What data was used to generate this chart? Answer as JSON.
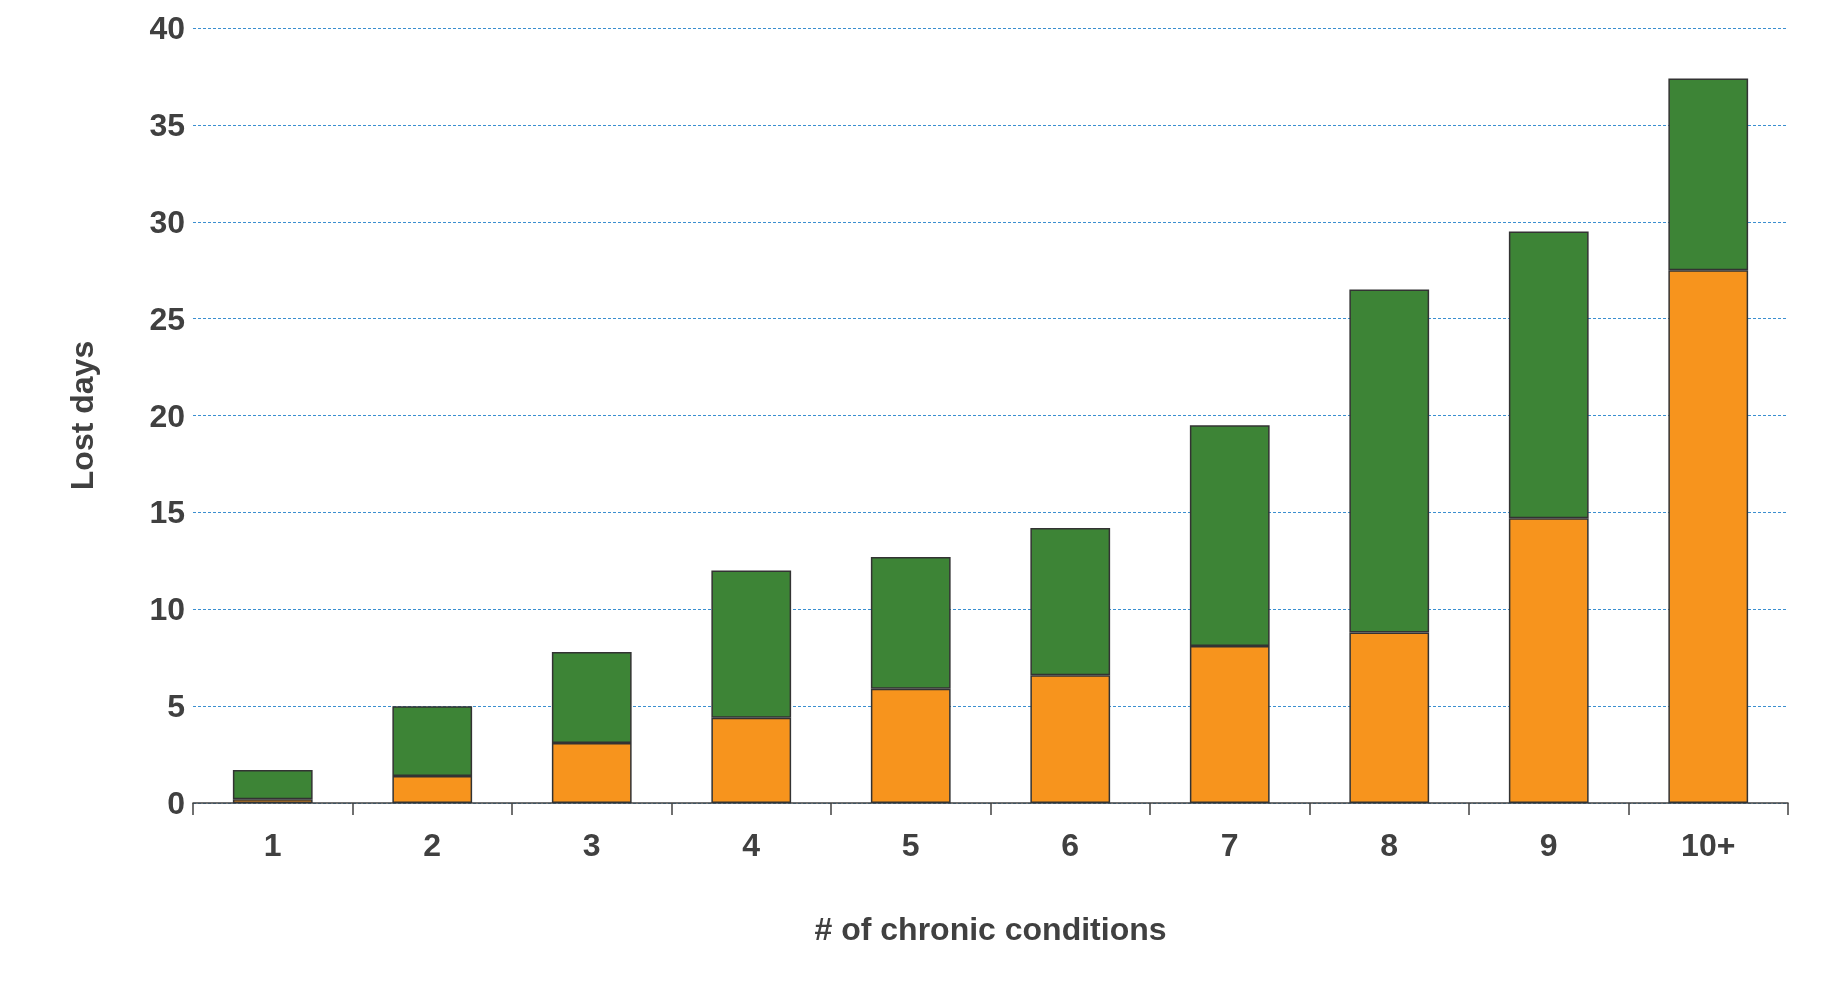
{
  "chart_data": {
    "type": "bar",
    "xlabel": "# of chronic conditions",
    "ylabel": "Lost days",
    "categories": [
      "1",
      "2",
      "3",
      "4",
      "5",
      "6",
      "7",
      "8",
      "9",
      "10+"
    ],
    "stacked": true,
    "series": [
      {
        "color": "#f7941d",
        "values": [
          0.2,
          1.4,
          3.1,
          4.4,
          5.9,
          6.6,
          8.1,
          8.8,
          14.7,
          27.5
        ]
      },
      {
        "color": "#3d8436",
        "values": [
          1.5,
          3.6,
          4.7,
          7.6,
          6.8,
          7.6,
          11.4,
          17.7,
          14.8,
          9.9
        ]
      }
    ],
    "ylim": [
      0,
      40
    ],
    "yticks": [
      0,
      5,
      10,
      15,
      20,
      25,
      30,
      35,
      40
    ],
    "grid": "y"
  }
}
